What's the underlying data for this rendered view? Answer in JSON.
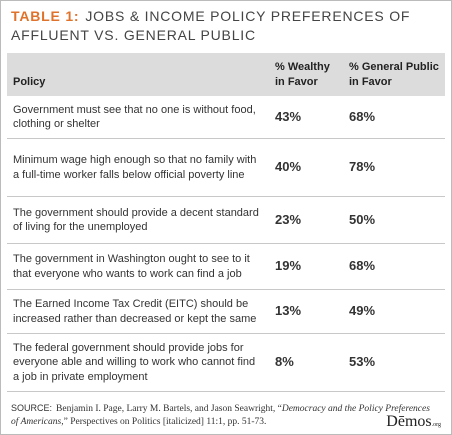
{
  "title": {
    "label": "TABLE 1:",
    "text": "JOBS & INCOME POLICY PREFERENCES OF AFFLUENT VS. GENERAL PUBLIC"
  },
  "table": {
    "header": [
      "Policy",
      "% Wealthy in Favor",
      "% General Public in Favor"
    ],
    "rows": [
      [
        "Government must see that no one is without food, clothing or shelter",
        "43%",
        "68%"
      ],
      [
        "Minimum wage high enough so that no family with a full-time worker falls below official poverty line",
        "40%",
        "78%"
      ],
      [
        "The government should provide a decent standard of living for the unemployed",
        "23%",
        "50%"
      ],
      [
        "The government in Washington ought to see to it that everyone who wants to work can find a job",
        "19%",
        "68%"
      ],
      [
        "The Earned Income Tax Credit (EITC) should be increased rather than decreased or kept the same",
        "13%",
        "49%"
      ],
      [
        "The federal government should provide jobs for everyone able and willing to work who cannot find a job in private employment",
        "8%",
        "53%"
      ]
    ]
  },
  "source": {
    "label": "SOURCE:",
    "text": "Benjamin I. Page, Larry M. Bartels, and Jason Seawright, “",
    "title": "Democracy and the Policy Preferences of Americans,",
    "rest": "” Perspectives on Politics [italicized] 11:1, pp. 51-73."
  },
  "logo": {
    "text": "Dēmos",
    "suffix": ".org"
  }
}
